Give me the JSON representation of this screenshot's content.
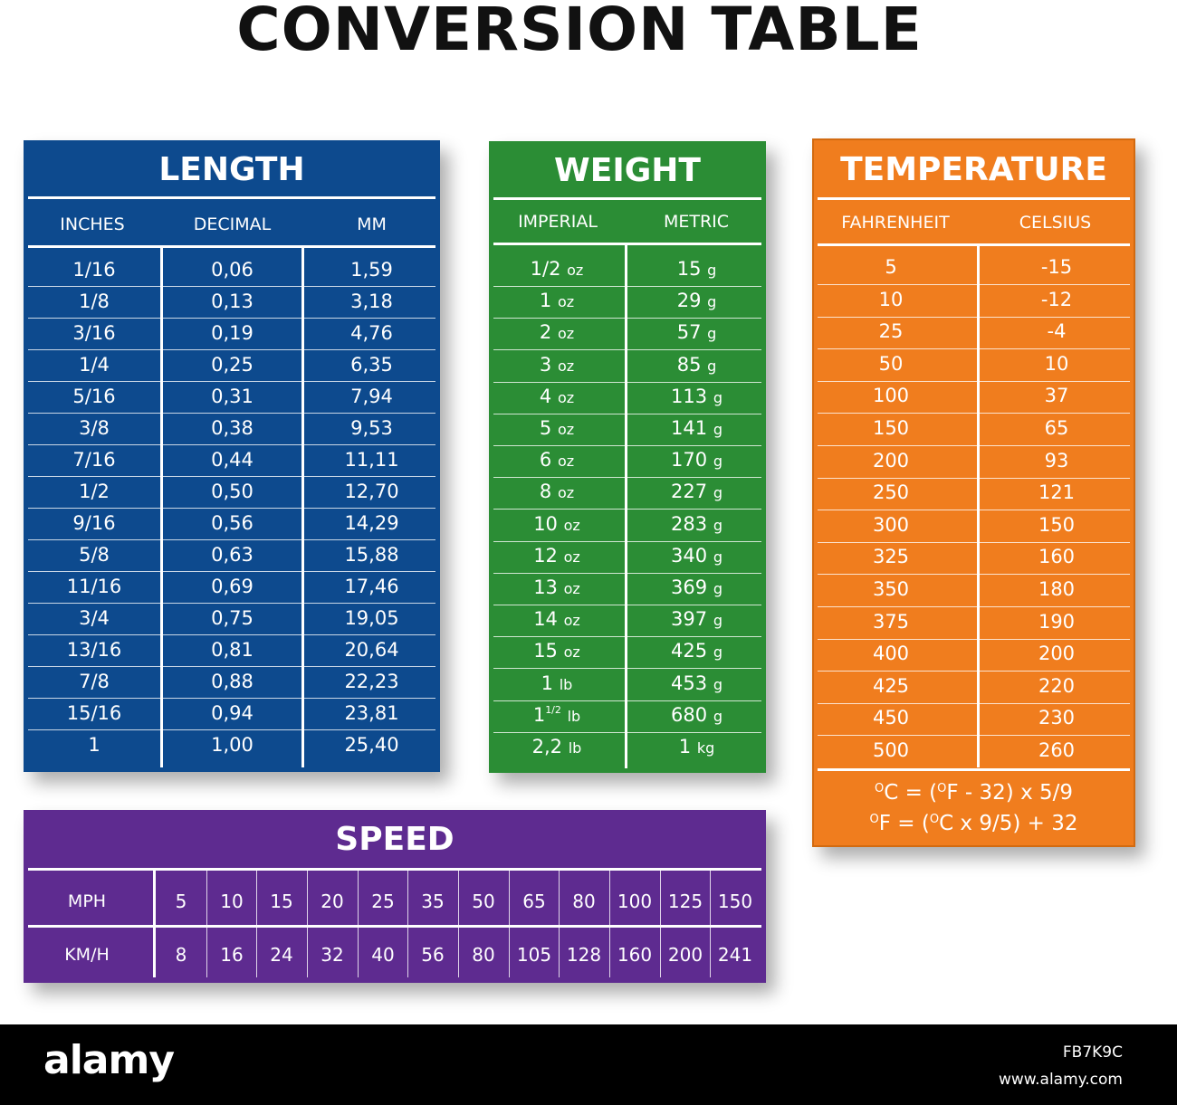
{
  "title": "CONVERSION TABLE",
  "length": {
    "title": "LENGTH",
    "headers": [
      "INCHES",
      "DECIMAL",
      "MM"
    ],
    "rows": [
      [
        "1/16",
        "0,06",
        "1,59"
      ],
      [
        "1/8",
        "0,13",
        "3,18"
      ],
      [
        "3/16",
        "0,19",
        "4,76"
      ],
      [
        "1/4",
        "0,25",
        "6,35"
      ],
      [
        "5/16",
        "0,31",
        "7,94"
      ],
      [
        "3/8",
        "0,38",
        "9,53"
      ],
      [
        "7/16",
        "0,44",
        "11,11"
      ],
      [
        "1/2",
        "0,50",
        "12,70"
      ],
      [
        "9/16",
        "0,56",
        "14,29"
      ],
      [
        "5/8",
        "0,63",
        "15,88"
      ],
      [
        "11/16",
        "0,69",
        "17,46"
      ],
      [
        "3/4",
        "0,75",
        "19,05"
      ],
      [
        "13/16",
        "0,81",
        "20,64"
      ],
      [
        "7/8",
        "0,88",
        "22,23"
      ],
      [
        "15/16",
        "0,94",
        "23,81"
      ],
      [
        "1",
        "1,00",
        "25,40"
      ]
    ]
  },
  "weight": {
    "title": "WEIGHT",
    "headers": [
      "IMPERIAL",
      "METRIC"
    ],
    "rows": [
      [
        {
          "n": "1/2",
          "u": "oz"
        },
        {
          "n": "15",
          "u": "g"
        }
      ],
      [
        {
          "n": "1",
          "u": "oz"
        },
        {
          "n": "29",
          "u": "g"
        }
      ],
      [
        {
          "n": "2",
          "u": "oz"
        },
        {
          "n": "57",
          "u": "g"
        }
      ],
      [
        {
          "n": "3",
          "u": "oz"
        },
        {
          "n": "85",
          "u": "g"
        }
      ],
      [
        {
          "n": "4",
          "u": "oz"
        },
        {
          "n": "113",
          "u": "g"
        }
      ],
      [
        {
          "n": "5",
          "u": "oz"
        },
        {
          "n": "141",
          "u": "g"
        }
      ],
      [
        {
          "n": "6",
          "u": "oz"
        },
        {
          "n": "170",
          "u": "g"
        }
      ],
      [
        {
          "n": "8",
          "u": "oz"
        },
        {
          "n": "227",
          "u": "g"
        }
      ],
      [
        {
          "n": "10",
          "u": "oz"
        },
        {
          "n": "283",
          "u": "g"
        }
      ],
      [
        {
          "n": "12",
          "u": "oz"
        },
        {
          "n": "340",
          "u": "g"
        }
      ],
      [
        {
          "n": "13",
          "u": "oz"
        },
        {
          "n": "369",
          "u": "g"
        }
      ],
      [
        {
          "n": "14",
          "u": "oz"
        },
        {
          "n": "397",
          "u": "g"
        }
      ],
      [
        {
          "n": "15",
          "u": "oz"
        },
        {
          "n": "425",
          "u": "g"
        }
      ],
      [
        {
          "n": "1",
          "u": "lb"
        },
        {
          "n": "453",
          "u": "g"
        }
      ],
      [
        {
          "n": "1",
          "sup": "1/2",
          "u": "lb"
        },
        {
          "n": "680",
          "u": "g"
        }
      ],
      [
        {
          "n": "2,2",
          "u": "lb"
        },
        {
          "n": "1",
          "u": "kg"
        }
      ]
    ]
  },
  "temperature": {
    "title": "TEMPERATURE",
    "headers": [
      "FAHRENHEIT",
      "CELSIUS"
    ],
    "rows": [
      [
        "5",
        "-15"
      ],
      [
        "10",
        "-12"
      ],
      [
        "25",
        "-4"
      ],
      [
        "50",
        "10"
      ],
      [
        "100",
        "37"
      ],
      [
        "150",
        "65"
      ],
      [
        "200",
        "93"
      ],
      [
        "250",
        "121"
      ],
      [
        "300",
        "150"
      ],
      [
        "325",
        "160"
      ],
      [
        "350",
        "180"
      ],
      [
        "375",
        "190"
      ],
      [
        "400",
        "200"
      ],
      [
        "425",
        "220"
      ],
      [
        "450",
        "230"
      ],
      [
        "500",
        "260"
      ]
    ],
    "formulas": [
      {
        "deg1": "O",
        "a": "C = (",
        "deg2": "O",
        "b": "F - 32) x 5/9"
      },
      {
        "deg1": "O",
        "a": "F = (",
        "deg2": "O",
        "b": "C x 9/5) + 32"
      }
    ]
  },
  "speed": {
    "title": "SPEED",
    "row_labels": [
      "MPH",
      "KM/H"
    ],
    "mph": [
      "5",
      "10",
      "15",
      "20",
      "25",
      "35",
      "50",
      "65",
      "80",
      "100",
      "125",
      "150"
    ],
    "kmh": [
      "8",
      "16",
      "24",
      "32",
      "40",
      "56",
      "80",
      "105",
      "128",
      "160",
      "200",
      "241"
    ]
  },
  "footer": {
    "brand": "alamy",
    "image_id": "FB7K9C",
    "url": "www.alamy.com"
  },
  "colors": {
    "length": "#0d4a8e",
    "weight": "#2b8d35",
    "temperature": "#f07d1e",
    "speed": "#5e2b90"
  }
}
